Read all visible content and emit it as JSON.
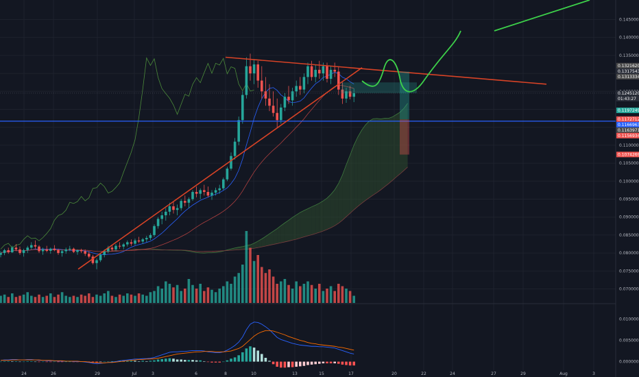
{
  "chart_data": {
    "type": "candlestick",
    "panels": [
      "price",
      "volume",
      "macd"
    ],
    "price_axis": {
      "ticks": [
        "0.14500000",
        "0.14000000",
        "0.13500000",
        "0.13000000",
        "0.12500000",
        "0.12000000",
        "0.11500000",
        "0.11000000",
        "0.10500000",
        "0.10000000",
        "0.09500000",
        "0.09000000",
        "0.08500000",
        "0.08000000",
        "0.07500000",
        "0.07000000"
      ],
      "ylim": [
        0.068,
        0.147
      ]
    },
    "time_axis": {
      "labels": [
        "24",
        "26",
        "29",
        "Jul",
        "3",
        "6",
        "8",
        "10",
        "13",
        "15",
        "17",
        "20",
        "22",
        "24",
        "27",
        "29",
        "Aug",
        "3"
      ]
    },
    "price_tags": [
      {
        "label": "0.13216202",
        "value": 0.13216,
        "color": "#4a4a4a"
      },
      {
        "label": "0.13175431",
        "value": 0.13175,
        "color": "#2a2e39"
      },
      {
        "label": "0.13133347",
        "value": 0.13133,
        "color": "#4a4a4a"
      },
      {
        "label": "0.12451205",
        "value": 0.12451,
        "color": "#2a2e39"
      },
      {
        "label": "01:43:27",
        "value": 0.124,
        "color": "#2a2e39"
      },
      {
        "label": "0.11972495",
        "value": 0.11972,
        "color": "#26a69a"
      },
      {
        "label": "0.11727124",
        "value": 0.11727,
        "color": "#ef5350"
      },
      {
        "label": "0.11669636",
        "value": 0.1167,
        "color": "#2962ff"
      },
      {
        "label": "0.11639719",
        "value": 0.1164,
        "color": "#4a4a4a"
      },
      {
        "label": "0.11569342",
        "value": 0.11569,
        "color": "#ef5350"
      },
      {
        "label": "0.10742692",
        "value": 0.10743,
        "color": "#ef5350"
      }
    ],
    "macd_axis": {
      "ticks": [
        "0.01000000",
        "0.00500000",
        "0.00000000"
      ],
      "ylim": [
        -0.002,
        0.0125
      ]
    },
    "horizontal_line": {
      "value": 0.1167,
      "color": "#2962ff"
    },
    "current_price_line": {
      "value": 0.1245
    },
    "ohlc": [
      [
        0.0795,
        0.0805,
        0.0788,
        0.08
      ],
      [
        0.08,
        0.0812,
        0.0794,
        0.0808
      ],
      [
        0.0808,
        0.0815,
        0.0798,
        0.0802
      ],
      [
        0.0802,
        0.082,
        0.08,
        0.0815
      ],
      [
        0.0815,
        0.0825,
        0.0805,
        0.081
      ],
      [
        0.081,
        0.0818,
        0.0795,
        0.08
      ],
      [
        0.08,
        0.0812,
        0.079,
        0.0808
      ],
      [
        0.0808,
        0.082,
        0.08,
        0.0815
      ],
      [
        0.0815,
        0.083,
        0.081,
        0.0822
      ],
      [
        0.0822,
        0.0835,
        0.0812,
        0.0818
      ],
      [
        0.0818,
        0.0822,
        0.08,
        0.0805
      ],
      [
        0.0805,
        0.0815,
        0.0795,
        0.081
      ],
      [
        0.081,
        0.082,
        0.0802,
        0.0806
      ],
      [
        0.0806,
        0.0815,
        0.0798,
        0.0812
      ],
      [
        0.0812,
        0.0822,
        0.0805,
        0.0808
      ],
      [
        0.0808,
        0.0812,
        0.0795,
        0.08
      ],
      [
        0.08,
        0.081,
        0.079,
        0.0805
      ],
      [
        0.0805,
        0.0815,
        0.0798,
        0.081
      ],
      [
        0.081,
        0.082,
        0.0805,
        0.0812
      ],
      [
        0.0812,
        0.0815,
        0.08,
        0.0803
      ],
      [
        0.0803,
        0.081,
        0.0795,
        0.0808
      ],
      [
        0.0808,
        0.0812,
        0.08,
        0.0805
      ],
      [
        0.0805,
        0.081,
        0.0792,
        0.0798
      ],
      [
        0.0798,
        0.0805,
        0.0785,
        0.079
      ],
      [
        0.079,
        0.0795,
        0.0768,
        0.0772
      ],
      [
        0.0772,
        0.0785,
        0.0755,
        0.078
      ],
      [
        0.078,
        0.08,
        0.0775,
        0.0795
      ],
      [
        0.0795,
        0.081,
        0.0788,
        0.0805
      ],
      [
        0.0805,
        0.082,
        0.08,
        0.0815
      ],
      [
        0.0815,
        0.0822,
        0.0805,
        0.081
      ],
      [
        0.081,
        0.0825,
        0.0805,
        0.082
      ],
      [
        0.082,
        0.083,
        0.0812,
        0.0818
      ],
      [
        0.0818,
        0.0828,
        0.081,
        0.0824
      ],
      [
        0.0824,
        0.0835,
        0.0818,
        0.083
      ],
      [
        0.083,
        0.0838,
        0.082,
        0.0826
      ],
      [
        0.0826,
        0.084,
        0.0822,
        0.0835
      ],
      [
        0.0835,
        0.0845,
        0.0828,
        0.0832
      ],
      [
        0.0832,
        0.0842,
        0.0825,
        0.0838
      ],
      [
        0.0838,
        0.0848,
        0.083,
        0.0842
      ],
      [
        0.0842,
        0.0855,
        0.0836,
        0.085
      ],
      [
        0.085,
        0.088,
        0.0845,
        0.0875
      ],
      [
        0.0875,
        0.09,
        0.0868,
        0.0895
      ],
      [
        0.0895,
        0.0915,
        0.088,
        0.0905
      ],
      [
        0.0905,
        0.0925,
        0.089,
        0.0915
      ],
      [
        0.0915,
        0.094,
        0.0905,
        0.093
      ],
      [
        0.093,
        0.0945,
        0.091,
        0.092
      ],
      [
        0.092,
        0.0935,
        0.0905,
        0.0925
      ],
      [
        0.0925,
        0.095,
        0.0918,
        0.0945
      ],
      [
        0.0945,
        0.096,
        0.093,
        0.094
      ],
      [
        0.094,
        0.0955,
        0.0925,
        0.095
      ],
      [
        0.095,
        0.0975,
        0.0945,
        0.097
      ],
      [
        0.097,
        0.0985,
        0.0955,
        0.0965
      ],
      [
        0.0965,
        0.098,
        0.095,
        0.0975
      ],
      [
        0.0975,
        0.099,
        0.096,
        0.097
      ],
      [
        0.097,
        0.0985,
        0.0955,
        0.096
      ],
      [
        0.096,
        0.0975,
        0.0948,
        0.0968
      ],
      [
        0.0968,
        0.0982,
        0.096,
        0.0975
      ],
      [
        0.0975,
        0.099,
        0.0965,
        0.098
      ],
      [
        0.098,
        0.101,
        0.0975,
        0.1005
      ],
      [
        0.1005,
        0.104,
        0.1,
        0.1035
      ],
      [
        0.1035,
        0.108,
        0.103,
        0.107
      ],
      [
        0.107,
        0.112,
        0.106,
        0.111
      ],
      [
        0.111,
        0.118,
        0.11,
        0.117
      ],
      [
        0.117,
        0.125,
        0.116,
        0.124
      ],
      [
        0.124,
        0.1345,
        0.123,
        0.132
      ],
      [
        0.132,
        0.1355,
        0.128,
        0.13
      ],
      [
        0.13,
        0.134,
        0.127,
        0.1325
      ],
      [
        0.1325,
        0.1335,
        0.126,
        0.128
      ],
      [
        0.128,
        0.132,
        0.123,
        0.125
      ],
      [
        0.125,
        0.129,
        0.121,
        0.123
      ],
      [
        0.123,
        0.127,
        0.1195,
        0.121
      ],
      [
        0.121,
        0.125,
        0.118,
        0.119
      ],
      [
        0.119,
        0.123,
        0.115,
        0.117
      ],
      [
        0.117,
        0.1215,
        0.116,
        0.1205
      ],
      [
        0.1205,
        0.1245,
        0.1195,
        0.1235
      ],
      [
        0.1235,
        0.1265,
        0.1215,
        0.1225
      ],
      [
        0.1225,
        0.126,
        0.121,
        0.125
      ],
      [
        0.125,
        0.128,
        0.1235,
        0.1265
      ],
      [
        0.1265,
        0.129,
        0.124,
        0.1255
      ],
      [
        0.1255,
        0.13,
        0.1245,
        0.129
      ],
      [
        0.129,
        0.133,
        0.127,
        0.132
      ],
      [
        0.132,
        0.1335,
        0.128,
        0.129
      ],
      [
        0.129,
        0.1325,
        0.1275,
        0.131
      ],
      [
        0.131,
        0.1335,
        0.1285,
        0.13
      ],
      [
        0.13,
        0.133,
        0.128,
        0.132
      ],
      [
        0.132,
        0.133,
        0.1275,
        0.1285
      ],
      [
        0.1285,
        0.132,
        0.127,
        0.131
      ],
      [
        0.131,
        0.133,
        0.129,
        0.1305
      ],
      [
        0.1305,
        0.132,
        0.124,
        0.1255
      ],
      [
        0.1255,
        0.1275,
        0.1215,
        0.123
      ],
      [
        0.123,
        0.126,
        0.1218,
        0.125
      ],
      [
        0.125,
        0.1265,
        0.1228,
        0.1235
      ],
      [
        0.1235,
        0.1258,
        0.122,
        0.1245
      ]
    ],
    "volume": [
      6,
      7,
      5,
      8,
      5,
      6,
      7,
      9,
      6,
      5,
      7,
      5,
      6,
      8,
      5,
      7,
      9,
      6,
      5,
      6,
      5,
      7,
      6,
      8,
      5,
      7,
      6,
      8,
      10,
      6,
      5,
      7,
      6,
      8,
      7,
      6,
      8,
      7,
      6,
      9,
      10,
      14,
      12,
      18,
      16,
      13,
      15,
      10,
      12,
      20,
      15,
      12,
      16,
      10,
      13,
      11,
      9,
      12,
      14,
      18,
      16,
      22,
      25,
      32,
      60,
      46,
      35,
      40,
      30,
      25,
      28,
      22,
      16,
      18,
      20,
      15,
      12,
      18,
      14,
      16,
      18,
      15,
      12,
      16,
      10,
      12,
      14,
      10,
      16,
      14,
      12,
      10,
      6
    ],
    "macd": [
      0.0003,
      0.0004,
      0.0004,
      0.0005,
      0.0005,
      0.0004,
      0.0004,
      0.0005,
      0.0005,
      0.0004,
      0.0003,
      0.0003,
      0.0002,
      0.0002,
      0.0002,
      0.0001,
      0.0001,
      0.0001,
      0.0001,
      0.0,
      0.0,
      0.0,
      -0.0001,
      -0.0002,
      -0.0004,
      -0.0005,
      -0.0004,
      -0.0003,
      -0.0002,
      -0.0001,
      0.0,
      0.0002,
      0.0003,
      0.0004,
      0.0005,
      0.0006,
      0.0006,
      0.0007,
      0.0007,
      0.0008,
      0.001,
      0.0013,
      0.0016,
      0.0019,
      0.0022,
      0.0023,
      0.0023,
      0.0024,
      0.0024,
      0.0025,
      0.0026,
      0.0026,
      0.0026,
      0.0025,
      0.0023,
      0.0022,
      0.0021,
      0.0021,
      0.0023,
      0.0027,
      0.0032,
      0.0038,
      0.0046,
      0.0058,
      0.0075,
      0.0088,
      0.0093,
      0.0092,
      0.0088,
      0.0082,
      0.0075,
      0.0066,
      0.0057,
      0.0052,
      0.0049,
      0.0046,
      0.0043,
      0.0041,
      0.0039,
      0.0038,
      0.0037,
      0.0036,
      0.0036,
      0.0035,
      0.0035,
      0.0034,
      0.0033,
      0.0032,
      0.0029,
      0.0026,
      0.0023,
      0.002,
      0.0018
    ],
    "macd_signal": [
      0.0003,
      0.0003,
      0.0003,
      0.0004,
      0.0004,
      0.0004,
      0.0004,
      0.0004,
      0.0004,
      0.0004,
      0.0004,
      0.0003,
      0.0003,
      0.0003,
      0.0002,
      0.0002,
      0.0002,
      0.0001,
      0.0001,
      0.0001,
      0.0001,
      0.0,
      0.0,
      -0.0001,
      -0.0002,
      -0.0002,
      -0.0003,
      -0.0003,
      -0.0002,
      -0.0002,
      -0.0001,
      0.0,
      0.0001,
      0.0002,
      0.0003,
      0.0004,
      0.0005,
      0.0005,
      0.0006,
      0.0006,
      0.0007,
      0.0008,
      0.001,
      0.0012,
      0.0014,
      0.0016,
      0.0018,
      0.0019,
      0.002,
      0.0021,
      0.0022,
      0.0023,
      0.0023,
      0.0024,
      0.0024,
      0.0024,
      0.0023,
      0.0023,
      0.0023,
      0.0024,
      0.0025,
      0.0028,
      0.0031,
      0.0036,
      0.0044,
      0.0052,
      0.006,
      0.0066,
      0.007,
      0.0073,
      0.0073,
      0.0072,
      0.0069,
      0.0066,
      0.0063,
      0.0059,
      0.0056,
      0.0053,
      0.005,
      0.0048,
      0.0045,
      0.0043,
      0.0042,
      0.004,
      0.0039,
      0.0038,
      0.0037,
      0.0036,
      0.0034,
      0.0033,
      0.0031,
      0.0029,
      0.0027
    ],
    "colors": {
      "up": "#26a69a",
      "down": "#ef5350",
      "trend": "#d84326",
      "projection": "#3dd14a",
      "hline": "#2962ff",
      "cloud_up": "#2d4a2d",
      "cloud_down": "#4a2b2b"
    }
  }
}
